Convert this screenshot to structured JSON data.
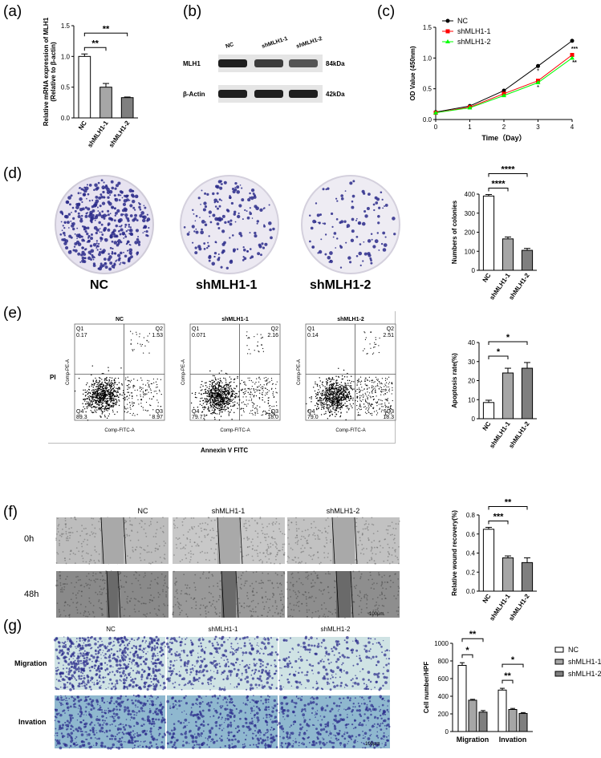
{
  "panels": {
    "a": "(a)",
    "b": "(b)",
    "c": "(c)",
    "d": "(d)",
    "e": "(e)",
    "f": "(f)",
    "g": "(g)"
  },
  "colors": {
    "nc": "#ffffff",
    "sh1": "#a6a6a6",
    "sh2": "#7f7f7f",
    "nc_line": "#000000",
    "sh1_line": "#ff0000",
    "sh2_line": "#00ff00",
    "stain": "#2a2a8a"
  },
  "western_blot": {
    "lanes": [
      "NC",
      "shMLH1-1",
      "shMLH1-2"
    ],
    "rows": [
      {
        "protein": "MLH1",
        "size": "84kDa",
        "intensity": [
          1.0,
          0.75,
          0.55
        ]
      },
      {
        "protein": "β-Actin",
        "size": "42kDa",
        "intensity": [
          1.0,
          1.0,
          1.0
        ]
      }
    ]
  },
  "dish_labels": [
    "NC",
    "shMLH1-1",
    "shMLH1-2"
  ],
  "flow": {
    "title_y": "PI",
    "title_x": "Annexin V FITC",
    "axis_y": "Comp-PE-A",
    "axis_x": "Comp-FITC-A",
    "plots": [
      {
        "name": "NC",
        "q1": "Q1",
        "q1v": "0.17",
        "q2": "Q2",
        "q2v": "1.53",
        "q3": "Q3",
        "q3v": "8.97",
        "q4": "Q4",
        "q4v": "89.3"
      },
      {
        "name": "shMLH1-1",
        "q1": "Q1",
        "q1v": "0.071",
        "q2": "Q2",
        "q2v": "2.16",
        "q3": "Q3",
        "q3v": "18.0",
        "q4": "Q4",
        "q4v": "79.7"
      },
      {
        "name": "shMLH1-2",
        "q1": "Q1",
        "q1v": "0.14",
        "q2": "Q2",
        "q2v": "2.51",
        "q3": "Q3",
        "q3v": "18.3",
        "q4": "Q4",
        "q4v": "79.0"
      }
    ]
  },
  "wound": {
    "cols": [
      "NC",
      "shMLH1-1",
      "shMLH1-2"
    ],
    "rows": [
      "0h",
      "48h"
    ],
    "scale": "100μm"
  },
  "transwell": {
    "cols": [
      "NC",
      "shMLH1-1",
      "shMLH1-2"
    ],
    "rows": [
      "Migration",
      "Invation"
    ],
    "scale": "100μm"
  },
  "chart_data": [
    {
      "id": "a",
      "type": "bar",
      "categories": [
        "NC",
        "shMLH1-1",
        "shMLH1-2"
      ],
      "values": [
        1.0,
        0.5,
        0.33
      ],
      "errors": [
        0.04,
        0.06,
        0.01
      ],
      "ylabel": "Relative mRNA expression of MLH1\n(Relative to β-actin)",
      "ylim": [
        0,
        1.5
      ],
      "yticks": [
        "0.0",
        "0.5",
        "1.0",
        "1.5"
      ],
      "sig": [
        {
          "text": "**",
          "from": 0,
          "to": 1
        },
        {
          "text": "**",
          "from": 0,
          "to": 2
        }
      ]
    },
    {
      "id": "c",
      "type": "line",
      "x": [
        0,
        1,
        2,
        3,
        4
      ],
      "xlabel": "Time（Day）",
      "ylabel": "OD Value (450nm)",
      "ylim": [
        0,
        1.5
      ],
      "yticks": [
        "0.0",
        "0.5",
        "1.0",
        "1.5"
      ],
      "xticks": [
        "0",
        "1",
        "2",
        "3",
        "4"
      ],
      "series": [
        {
          "name": "NC",
          "values": [
            0.12,
            0.22,
            0.47,
            0.87,
            1.28
          ]
        },
        {
          "name": "shMLH1-1",
          "values": [
            0.11,
            0.2,
            0.42,
            0.63,
            1.05
          ]
        },
        {
          "name": "shMLH1-2",
          "values": [
            0.11,
            0.19,
            0.39,
            0.6,
            1.0
          ]
        }
      ],
      "annotations": [
        "*",
        "*",
        "***",
        "**"
      ]
    },
    {
      "id": "d",
      "type": "bar",
      "categories": [
        "NC",
        "shMLH1-1",
        "shMLH1-2"
      ],
      "values": [
        390,
        165,
        105
      ],
      "errors": [
        8,
        10,
        10
      ],
      "ylabel": "Numbers of colonies",
      "ylim": [
        0,
        400
      ],
      "yticks": [
        "0",
        "100",
        "200",
        "300",
        "400"
      ],
      "sig": [
        {
          "text": "****",
          "from": 0,
          "to": 1
        },
        {
          "text": "****",
          "from": 0,
          "to": 2
        }
      ]
    },
    {
      "id": "e",
      "type": "bar",
      "categories": [
        "NC",
        "shMLH1-1",
        "shMLH1-2"
      ],
      "values": [
        8.5,
        24,
        26.5
      ],
      "errors": [
        1.2,
        2.5,
        3
      ],
      "ylabel": "Apoptosis rate(%)",
      "ylim": [
        0,
        40
      ],
      "yticks": [
        "0",
        "10",
        "20",
        "30",
        "40"
      ],
      "sig": [
        {
          "text": "*",
          "from": 0,
          "to": 1
        },
        {
          "text": "*",
          "from": 0,
          "to": 2
        }
      ]
    },
    {
      "id": "f",
      "type": "bar",
      "categories": [
        "NC",
        "shMLH1-1",
        "shMLH1-2"
      ],
      "values": [
        0.65,
        0.35,
        0.3
      ],
      "errors": [
        0.02,
        0.02,
        0.05
      ],
      "ylabel": "Relative wound recovery(%)",
      "ylim": [
        0,
        0.8
      ],
      "yticks": [
        "0.0",
        "0.2",
        "0.4",
        "0.6",
        "0.8"
      ],
      "sig": [
        {
          "text": "***",
          "from": 0,
          "to": 1
        },
        {
          "text": "**",
          "from": 0,
          "to": 2
        }
      ]
    },
    {
      "id": "g",
      "type": "bar",
      "categories": [
        "Migration",
        "Invation"
      ],
      "series": [
        {
          "name": "NC",
          "values": [
            750,
            470
          ],
          "errors": [
            30,
            20
          ]
        },
        {
          "name": "shMLH1-1",
          "values": [
            355,
            250
          ],
          "errors": [
            10,
            12
          ]
        },
        {
          "name": "shMLH1-2",
          "values": [
            220,
            205
          ],
          "errors": [
            18,
            10
          ]
        }
      ],
      "ylabel": "Cell number/HPF",
      "ylim": [
        0,
        1000
      ],
      "yticks": [
        "0",
        "200",
        "400",
        "600",
        "800",
        "1000"
      ],
      "sig": [
        {
          "text": "*",
          "group": 0,
          "from": 0,
          "to": 1
        },
        {
          "text": "**",
          "group": 0,
          "from": 0,
          "to": 2
        },
        {
          "text": "**",
          "group": 1,
          "from": 0,
          "to": 1
        },
        {
          "text": "*",
          "group": 1,
          "from": 0,
          "to": 2
        }
      ]
    }
  ]
}
